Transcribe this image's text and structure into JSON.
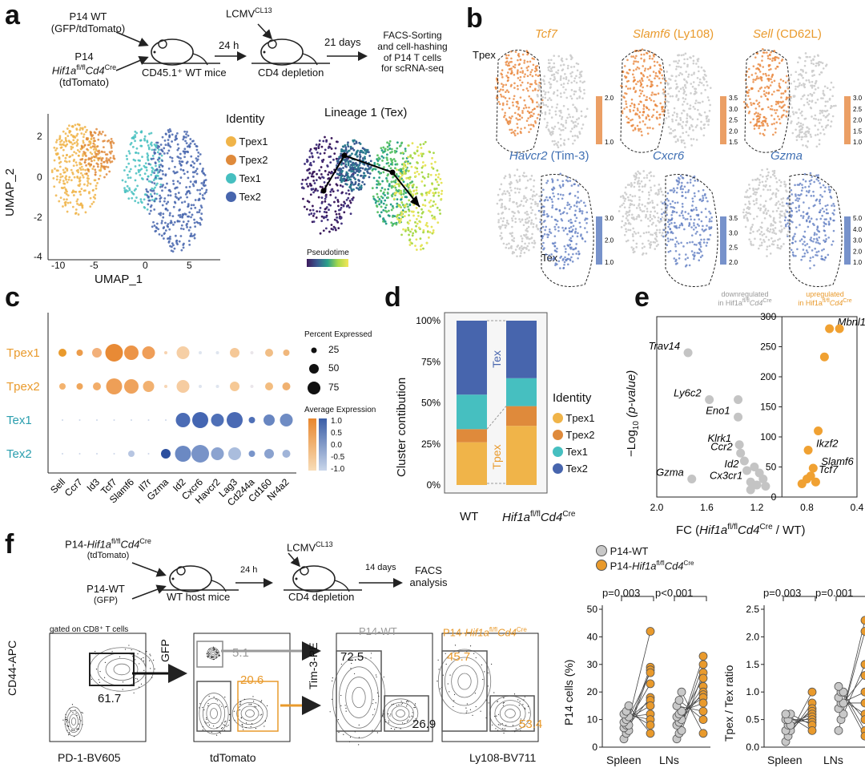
{
  "panel_a": {
    "label": "a",
    "p14wt_line1": "P14 WT",
    "p14wt_line2": "(GFP/tdTomato)",
    "p14_line1": "P14",
    "p14_hif": "Hif1a",
    "p14_hif_sup": "fl/fl",
    "p14_cd4": "Cd4",
    "p14_cd4_sup": "Cre",
    "p14_tdtomato": "(tdTomato)",
    "mice_label": "CD45.1⁺ WT mice",
    "t24h": "24 h",
    "lcmv": "LCMV",
    "lcmv_sup": "CL13",
    "cd4_depletion": "CD4 depletion",
    "t21days": "21 days",
    "facs_line1": "FACS-Sorting",
    "facs_line2": "and cell-hashing",
    "facs_line3": "of P14 T cells",
    "facs_line4": "for scRNA-seq",
    "identity_title": "Identity",
    "identity_items": [
      "Tpex1",
      "Tpex2",
      "Tex1",
      "Tex2"
    ],
    "identity_colors": [
      "#f0b449",
      "#df8a3b",
      "#46bfc0",
      "#4765ad"
    ],
    "umap_xlabel": "UMAP_1",
    "umap_ylabel": "UMAP_2",
    "umap_xticks": [
      "-10",
      "-5",
      "0",
      "5"
    ],
    "umap_yticks": [
      "2",
      "0",
      "-2",
      "-4"
    ],
    "lineage_title": "Lineage 1 (Tex)",
    "pseudotime": "Pseudotime"
  },
  "panel_b": {
    "label": "b",
    "tpex": "Tpex",
    "tex": "Tex",
    "genes_top": [
      {
        "gene": "Tcf7",
        "suffix": ""
      },
      {
        "gene": "Slamf6",
        "suffix": " (Ly108)"
      },
      {
        "gene": "Sell",
        "suffix": " (CD62L)"
      }
    ],
    "genes_bottom": [
      {
        "gene": "Havcr2",
        "suffix": " (Tim-3)"
      },
      {
        "gene": "Cxcr6",
        "suffix": ""
      },
      {
        "gene": "Gzma",
        "suffix": ""
      }
    ],
    "scales_top": [
      [
        "2.0",
        "1.0"
      ],
      [
        "3.5",
        "3.0",
        "2.5",
        "2.0",
        "1.5"
      ],
      [
        "3.0",
        "2.5",
        "2.0",
        "1.5",
        "1.0"
      ]
    ],
    "scales_bottom": [
      [
        "3.0",
        "2.0",
        "1.0"
      ],
      [
        "3.5",
        "3.0",
        "2.5",
        "2.0"
      ],
      [
        "5.0",
        "4.0",
        "3.0",
        "2.0",
        "1.0"
      ]
    ]
  },
  "panel_c": {
    "label": "c",
    "rows": [
      "Tpex1",
      "Tpex2",
      "Tex1",
      "Tex2"
    ],
    "columns": [
      "Sell",
      "Ccr7",
      "Id3",
      "Tcf7",
      "Slamf6",
      "Il7r",
      "Gzma",
      "Id2",
      "Cxcr6",
      "Havcr2",
      "Lag3",
      "Cd244a",
      "Cd160",
      "Nr4a2"
    ],
    "percent_title": "Percent Expressed",
    "percent_values": [
      "25",
      "50",
      "75"
    ],
    "avg_title": "Average Expression",
    "avg_values": [
      "1.0",
      "0.5",
      "0.0",
      "-0.5",
      "-1.0"
    ]
  },
  "panel_d": {
    "label": "d",
    "ylabel": "Cluster contibution",
    "yticks": [
      "100%",
      "75%",
      "50%",
      "25%",
      "0%"
    ],
    "bar_labels": [
      "WT",
      "Hif1a"
    ],
    "bar2_hif_sup": "fl/fl",
    "bar2_cd4": "Cd4",
    "bar2_cre_sup": "Cre",
    "tex": "Tex",
    "tpex": "Tpex",
    "identity_title": "Identity",
    "identity_items": [
      "Tpex1",
      "Tpex2",
      "Tex1",
      "Tex2"
    ]
  },
  "panel_e": {
    "label": "e",
    "down_line1": "downregulated",
    "down_line2": "in Hif1a",
    "down_sup1": "fl/fl",
    "down_cd4": "Cd4",
    "down_sup2": "Cre",
    "up_line1": "upregulated",
    "up_line2": "in Hif1a",
    "up_sup1": "fl/fl",
    "up_cd4": "Cd4",
    "up_sup2": "Cre",
    "ylabel": "−Log",
    "ylabel_sub": "10",
    "ylabel_rest": " (p-value)",
    "xlabel_pre": "FC (",
    "xlabel_hif": "Hif1a",
    "xlabel_sup1": "fl/fl",
    "xlabel_cd4": "Cd4",
    "xlabel_sup2": "Cre",
    "xlabel_post": " / WT)",
    "xticks": [
      "2.0",
      "1.6",
      "1.2",
      "0.8",
      "0.4"
    ],
    "yticks": [
      "300",
      "250",
      "200",
      "150",
      "100",
      "50",
      "0"
    ],
    "genes_down": [
      "Trav14",
      "Ly6c2",
      "Eno1",
      "Klrk1",
      "Ccr2",
      "Id2",
      "Gzma",
      "Cx3cr1"
    ],
    "genes_up": [
      "Mbnl1",
      "Ikzf2",
      "Slamf6",
      "Tcf7"
    ]
  },
  "panel_f": {
    "label": "f",
    "p14hif_pre": "P14-",
    "p14hif_hif": "Hif1a",
    "p14hif_sup": "fl/fl",
    "p14hif_cd4": "Cd4",
    "p14hif_cre": "Cre",
    "p14hif_tdtomato": "(tdTomato)",
    "p14wt": "P14-WT",
    "p14wt_gfp": "(GFP)",
    "host_mice": "WT host mice",
    "t24h": "24 h",
    "lcmv": "LCMV",
    "lcmv_sup": "CL13",
    "cd4_depletion": "CD4 depletion",
    "t14days": "14 days",
    "facs1": "FACS",
    "facs2": "analysis",
    "gated_on": "gated on CD8⁺ T cells",
    "flow1_y": "CD44-APC",
    "flow1_x": "PD-1-BV605",
    "flow1_gate": "61.7",
    "flow2_y": "GFP",
    "flow2_x": "tdTomato",
    "flow2_gfp": "5.1",
    "flow2_td": "20.6",
    "flow3_title": "P14-WT",
    "flow3_tpex": "72.5",
    "flow3_tex": "26.9",
    "flow4_title_pre": "P14-",
    "flow4_tpex": "45.7",
    "flow4_tex": "53.4",
    "flow34_y": "Tim-3-PE",
    "flow34_x": "Ly108-BV711",
    "legend_wt": "P14-WT",
    "legend_hif_pre": "P14-",
    "chart1_ylabel": "P14 cells (%)",
    "chart1_yticks": [
      "50",
      "40",
      "30",
      "20",
      "10",
      "0"
    ],
    "chart1_pvals": [
      "p=0.003",
      "p<0.001"
    ],
    "chart2_ylabel": "Tpex / Tex ratio",
    "chart2_yticks": [
      "2.5",
      "2.0",
      "1.5",
      "1.0",
      "0.5",
      "0.0"
    ],
    "chart2_pvals": [
      "p=0.003",
      "p=0.001"
    ],
    "groups": [
      "Spleen",
      "LNs"
    ]
  },
  "chart_data": [
    {
      "type": "bar",
      "title": "",
      "ylabel": "Cluster contibution",
      "categories": [
        "WT",
        "Hif1a fl/fl Cd4 Cre"
      ],
      "series": [
        {
          "name": "Tpex1",
          "values": [
            26,
            36
          ]
        },
        {
          "name": "Tpex2",
          "values": [
            8,
            12
          ]
        },
        {
          "name": "Tex1",
          "values": [
            21,
            17
          ]
        },
        {
          "name": "Tex2",
          "values": [
            45,
            35
          ]
        }
      ],
      "ylim": [
        0,
        100
      ]
    },
    {
      "type": "scatter",
      "xlabel": "FC (Hif1a fl/fl Cd4 Cre / WT)",
      "ylabel": "−Log10 (p-value)",
      "xlim": [
        2.0,
        0.4
      ],
      "ylim": [
        0,
        300
      ],
      "points": [
        {
          "label": "Trav14",
          "x": 1.75,
          "y": 240,
          "group": "down"
        },
        {
          "label": "Ly6c2",
          "x": 1.58,
          "y": 162,
          "group": "down"
        },
        {
          "label": "Eno1",
          "x": 1.35,
          "y": 133,
          "group": "down"
        },
        {
          "label": "Klrk1",
          "x": 1.34,
          "y": 87,
          "group": "down"
        },
        {
          "label": "Ccr2",
          "x": 1.33,
          "y": 73,
          "group": "down"
        },
        {
          "label": "Id2",
          "x": 1.28,
          "y": 44,
          "group": "down"
        },
        {
          "label": "Gzma",
          "x": 1.72,
          "y": 30,
          "group": "down"
        },
        {
          "label": "Cx3cr1",
          "x": 1.25,
          "y": 25,
          "group": "down"
        },
        {
          "label": "",
          "x": 1.35,
          "y": 162,
          "group": "down"
        },
        {
          "label": "",
          "x": 1.3,
          "y": 60,
          "group": "down"
        },
        {
          "label": "",
          "x": 1.22,
          "y": 50,
          "group": "down"
        },
        {
          "label": "",
          "x": 1.18,
          "y": 40,
          "group": "down"
        },
        {
          "label": "",
          "x": 1.15,
          "y": 30,
          "group": "down"
        },
        {
          "label": "",
          "x": 1.2,
          "y": 20,
          "group": "down"
        },
        {
          "label": "",
          "x": 1.25,
          "y": 12,
          "group": "down"
        },
        {
          "label": "",
          "x": 1.13,
          "y": 18,
          "group": "down"
        },
        {
          "label": "Mbnl1",
          "x": 0.62,
          "y": 280,
          "group": "up"
        },
        {
          "label": "",
          "x": 0.54,
          "y": 280,
          "group": "up"
        },
        {
          "label": "",
          "x": 0.66,
          "y": 233,
          "group": "up"
        },
        {
          "label": "",
          "x": 0.71,
          "y": 110,
          "group": "up"
        },
        {
          "label": "Ikzf2",
          "x": 0.79,
          "y": 78,
          "group": "up"
        },
        {
          "label": "Slamf6",
          "x": 0.75,
          "y": 48,
          "group": "up"
        },
        {
          "label": "Tcf7",
          "x": 0.77,
          "y": 35,
          "group": "up"
        },
        {
          "label": "",
          "x": 0.8,
          "y": 30,
          "group": "up"
        },
        {
          "label": "",
          "x": 0.84,
          "y": 22,
          "group": "up"
        },
        {
          "label": "",
          "x": 0.73,
          "y": 25,
          "group": "up"
        }
      ]
    },
    {
      "type": "scatter",
      "ylabel": "P14 cells (%)",
      "categories": [
        "Spleen",
        "LNs"
      ],
      "ylim": [
        0,
        50
      ],
      "series": [
        {
          "name": "P14-WT",
          "spleen": [
            3,
            5,
            6,
            7,
            8,
            8,
            9,
            10,
            11,
            12,
            13,
            15
          ],
          "lns": [
            3,
            5,
            6,
            8,
            9,
            10,
            11,
            12,
            13,
            15,
            17,
            20
          ]
        },
        {
          "name": "P14-Hif1a fl/fl Cd4 Cre",
          "spleen": [
            42,
            29,
            28,
            27,
            23,
            18,
            17,
            15,
            12,
            10,
            8,
            5
          ],
          "lns": [
            33,
            30,
            27,
            25,
            22,
            20,
            19,
            18,
            16,
            13,
            10,
            5
          ]
        }
      ]
    },
    {
      "type": "scatter",
      "ylabel": "Tpex / Tex ratio",
      "categories": [
        "Spleen",
        "LNs"
      ],
      "ylim": [
        0,
        2.5
      ],
      "series": [
        {
          "name": "P14-WT",
          "spleen": [
            0.1,
            0.2,
            0.3,
            0.3,
            0.4,
            0.4,
            0.5,
            0.5,
            0.6,
            0.6
          ],
          "lns": [
            0.3,
            0.5,
            0.6,
            0.7,
            0.8,
            0.8,
            0.9,
            1.0,
            1.0,
            1.1
          ]
        },
        {
          "name": "P14-Hif1a fl/fl Cd4 Cre",
          "spleen": [
            1.0,
            0.8,
            0.7,
            0.65,
            0.6,
            0.55,
            0.5,
            0.45,
            0.4,
            0.3
          ],
          "lns": [
            2.3,
            2.1,
            1.5,
            1.3,
            1.0,
            0.8,
            0.6,
            0.5,
            0.3,
            0.2
          ]
        }
      ]
    }
  ]
}
